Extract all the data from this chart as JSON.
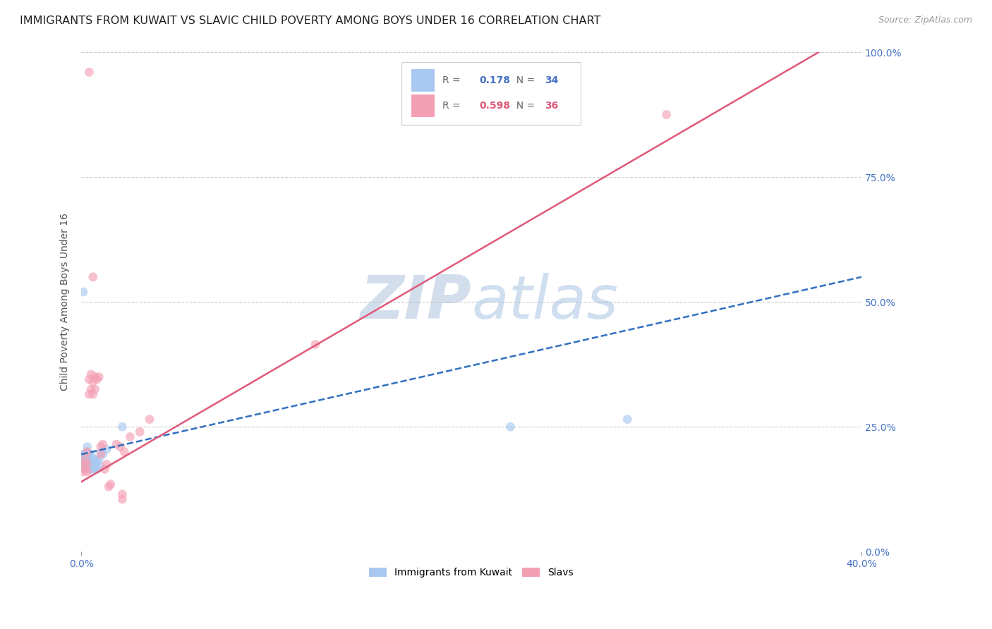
{
  "title": "IMMIGRANTS FROM KUWAIT VS SLAVIC CHILD POVERTY AMONG BOYS UNDER 16 CORRELATION CHART",
  "source": "Source: ZipAtlas.com",
  "ylabel": "Child Poverty Among Boys Under 16",
  "xlim": [
    0,
    0.4
  ],
  "ylim": [
    0,
    1.0
  ],
  "R_blue": 0.178,
  "N_blue": 34,
  "R_pink": 0.598,
  "N_pink": 36,
  "legend_label_blue": "Immigrants from Kuwait",
  "legend_label_pink": "Slavs",
  "watermark": "ZIPatlas",
  "blue_color": "#a8c8f0",
  "pink_color": "#f4a0b4",
  "blue_line_color": "#3070c0",
  "pink_line_color": "#e05878",
  "scatter_alpha": 0.65,
  "scatter_size": 85,
  "grid_color": "#cccccc",
  "background_color": "#ffffff",
  "title_fontsize": 11.5,
  "source_fontsize": 9,
  "axis_label_fontsize": 10,
  "tick_fontsize": 10,
  "watermark_fontsize": 62,
  "watermark_color": "#b8cce8",
  "watermark_alpha": 0.45,
  "right_tick_color": "#4472c4"
}
